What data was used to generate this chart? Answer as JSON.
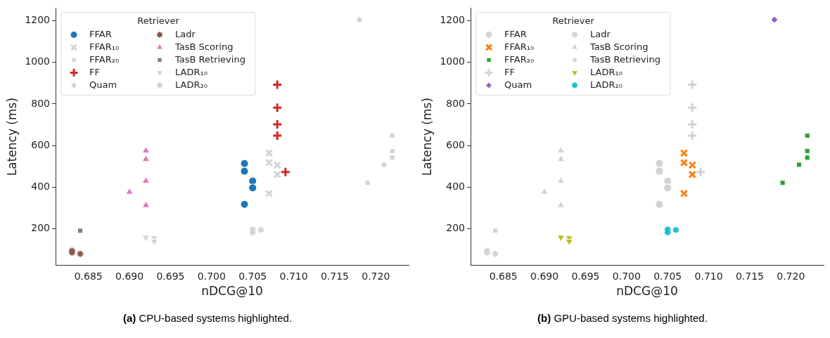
{
  "chart_data": [
    {
      "type": "scatter",
      "title": "(a) CPU-based systems highlighted.",
      "xlabel": "nDCG@10",
      "ylabel": "Latency (ms)",
      "legend_title": "Retriever",
      "legend": "top left",
      "grid": false,
      "xlim": [
        0.681,
        0.724
      ],
      "ylim": [
        24,
        1261
      ],
      "xticks": [
        {
          "value": 0.685,
          "label": "0.685"
        },
        {
          "value": 0.69,
          "label": "0.690"
        },
        {
          "value": 0.695,
          "label": "0.695"
        },
        {
          "value": 0.7,
          "label": "0.700"
        },
        {
          "value": 0.705,
          "label": "0.705"
        },
        {
          "value": 0.71,
          "label": "0.710"
        },
        {
          "value": 0.715,
          "label": "0.715"
        },
        {
          "value": 0.72,
          "label": "0.720"
        }
      ],
      "yticks": [
        200,
        400,
        600,
        800,
        1000,
        1200
      ],
      "series": [
        {
          "name": "FFAR",
          "color": "#1f77b4",
          "marker": "circle",
          "x": [
            0.704,
            0.704,
            0.705,
            0.705,
            0.704
          ],
          "values": [
            514,
            477,
            430,
            397,
            318
          ]
        },
        {
          "name": "FFAR₁₀",
          "color": "#d3d3d3",
          "marker": "x",
          "x": [
            0.707,
            0.707,
            0.708,
            0.708,
            0.707
          ],
          "values": [
            564,
            518,
            506,
            461,
            370
          ]
        },
        {
          "name": "FFAR₂₀",
          "color": "#d3d3d3",
          "marker": "square",
          "x": [
            0.722,
            0.722,
            0.722,
            0.721,
            0.719
          ],
          "values": [
            648,
            574,
            542,
            508,
            421
          ]
        },
        {
          "name": "FF",
          "color": "#d62728",
          "marker": "plus",
          "x": [
            0.708,
            0.708,
            0.708,
            0.708,
            0.709
          ],
          "values": [
            893,
            782,
            702,
            648,
            473
          ]
        },
        {
          "name": "Quam",
          "color": "#d3d3d3",
          "marker": "diamond",
          "x": [
            0.718
          ],
          "values": [
            1205
          ]
        },
        {
          "name": "Ladr",
          "color": "#8c564b",
          "marker": "cross",
          "x": [
            0.683,
            0.683,
            0.684
          ],
          "values": [
            95,
            86,
            80
          ]
        },
        {
          "name": "TasB Scoring",
          "color": "#e377c2",
          "marker": "triangle",
          "x": [
            0.692,
            0.692,
            0.692,
            0.69,
            0.692
          ],
          "values": [
            575,
            534,
            430,
            377,
            313
          ]
        },
        {
          "name": "TasB Retrieving",
          "color": "#7f7f7f",
          "marker": "square",
          "x": [
            0.684
          ],
          "values": [
            191
          ]
        },
        {
          "name": "LADR₁₀",
          "color": "#d3d3d3",
          "marker": "triangle_down",
          "x": [
            0.692,
            0.693,
            0.693
          ],
          "values": [
            159,
            156,
            140
          ]
        },
        {
          "name": "LADR₂₀",
          "color": "#d3d3d3",
          "marker": "cross",
          "x": [
            0.705,
            0.705,
            0.706
          ],
          "values": [
            197,
            183,
            195
          ]
        }
      ]
    },
    {
      "type": "scatter",
      "title": "(b) GPU-based systems highlighted.",
      "xlabel": "nDCG@10",
      "ylabel": "Latency (ms)",
      "legend_title": "Retriever",
      "legend": "top left",
      "grid": false,
      "xlim": [
        0.681,
        0.724
      ],
      "ylim": [
        24,
        1261
      ],
      "xticks": [
        {
          "value": 0.685,
          "label": "0.685"
        },
        {
          "value": 0.69,
          "label": "0.690"
        },
        {
          "value": 0.695,
          "label": "0.695"
        },
        {
          "value": 0.7,
          "label": "0.700"
        },
        {
          "value": 0.705,
          "label": "0.705"
        },
        {
          "value": 0.71,
          "label": "0.710"
        },
        {
          "value": 0.715,
          "label": "0.715"
        },
        {
          "value": 0.72,
          "label": "0.720"
        }
      ],
      "yticks": [
        200,
        400,
        600,
        800,
        1000,
        1200
      ],
      "series": [
        {
          "name": "FFAR",
          "color": "#d3d3d3",
          "marker": "circle",
          "x": [
            0.704,
            0.704,
            0.705,
            0.705,
            0.704
          ],
          "values": [
            514,
            477,
            430,
            397,
            318
          ]
        },
        {
          "name": "FFAR₁₀",
          "color": "#ff7f0e",
          "marker": "x",
          "x": [
            0.707,
            0.707,
            0.708,
            0.708,
            0.707
          ],
          "values": [
            564,
            518,
            506,
            461,
            370
          ]
        },
        {
          "name": "FFAR₂₀",
          "color": "#2ca02c",
          "marker": "square",
          "x": [
            0.722,
            0.722,
            0.722,
            0.721,
            0.719
          ],
          "values": [
            648,
            574,
            542,
            508,
            421
          ]
        },
        {
          "name": "FF",
          "color": "#d3d3d3",
          "marker": "plus",
          "x": [
            0.708,
            0.708,
            0.708,
            0.708,
            0.709
          ],
          "values": [
            893,
            782,
            702,
            648,
            473
          ]
        },
        {
          "name": "Quam",
          "color": "#9467bd",
          "marker": "diamond",
          "x": [
            0.718
          ],
          "values": [
            1205
          ]
        },
        {
          "name": "Ladr",
          "color": "#d3d3d3",
          "marker": "cross",
          "x": [
            0.683,
            0.683,
            0.684
          ],
          "values": [
            95,
            86,
            80
          ]
        },
        {
          "name": "TasB Scoring",
          "color": "#d3d3d3",
          "marker": "triangle",
          "x": [
            0.692,
            0.692,
            0.692,
            0.69,
            0.692
          ],
          "values": [
            575,
            534,
            430,
            377,
            313
          ]
        },
        {
          "name": "TasB Retrieving",
          "color": "#d3d3d3",
          "marker": "square",
          "x": [
            0.684
          ],
          "values": [
            191
          ]
        },
        {
          "name": "LADR₁₀",
          "color": "#bcbd22",
          "marker": "triangle_down",
          "x": [
            0.692,
            0.693,
            0.693
          ],
          "values": [
            159,
            156,
            140
          ]
        },
        {
          "name": "LADR₂₀",
          "color": "#17becf",
          "marker": "cross",
          "x": [
            0.705,
            0.705,
            0.706
          ],
          "values": [
            197,
            183,
            195
          ]
        }
      ]
    }
  ]
}
